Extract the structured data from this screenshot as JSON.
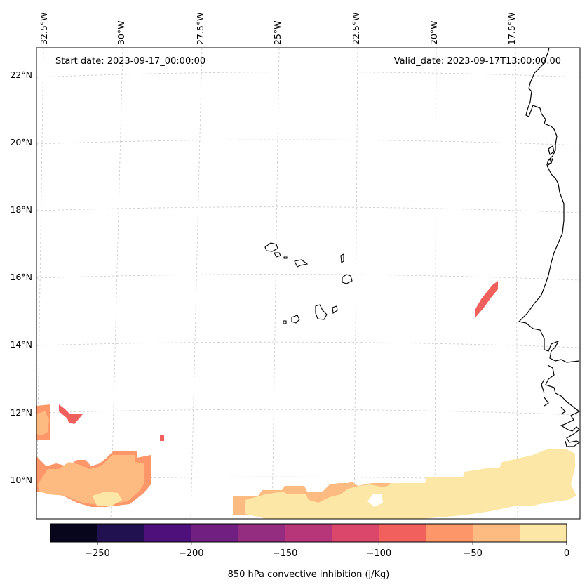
{
  "map": {
    "start_label": "Start date: 2023-09-17_00:00:00",
    "valid_label": "Valid_date: 2023-09-17T13:00:00.00",
    "lon_labels": [
      "32.5°W",
      "30°W",
      "27.5°W",
      "25°W",
      "22.5°W",
      "20°W",
      "17.5°W"
    ],
    "lat_labels": [
      "22°N",
      "20°N",
      "18°N",
      "16°N",
      "14°N",
      "12°N",
      "10°N"
    ]
  },
  "colorbar": {
    "title": "850 hPa convective inhibition (j/Kg)",
    "range": [
      -275,
      0
    ],
    "ticks": [
      {
        "value": -250,
        "label": "−250"
      },
      {
        "value": -200,
        "label": "−200"
      },
      {
        "value": -150,
        "label": "−150"
      },
      {
        "value": -100,
        "label": "−100"
      },
      {
        "value": -50,
        "label": "−50"
      },
      {
        "value": 0,
        "label": "0"
      }
    ],
    "levels": [
      {
        "from": -275,
        "to": -250,
        "color": "#07061c"
      },
      {
        "from": -250,
        "to": -225,
        "color": "#221150"
      },
      {
        "from": -225,
        "to": -200,
        "color": "#4e117b"
      },
      {
        "from": -200,
        "to": -175,
        "color": "#711f81"
      },
      {
        "from": -175,
        "to": -150,
        "color": "#942c80"
      },
      {
        "from": -150,
        "to": -125,
        "color": "#b7367a"
      },
      {
        "from": -125,
        "to": -100,
        "color": "#db476a"
      },
      {
        "from": -100,
        "to": -75,
        "color": "#f1605d"
      },
      {
        "from": -75,
        "to": -50,
        "color": "#fd9668"
      },
      {
        "from": -50,
        "to": -25,
        "color": "#febb81"
      },
      {
        "from": -25,
        "to": 0,
        "color": "#fce7a6"
      }
    ]
  }
}
